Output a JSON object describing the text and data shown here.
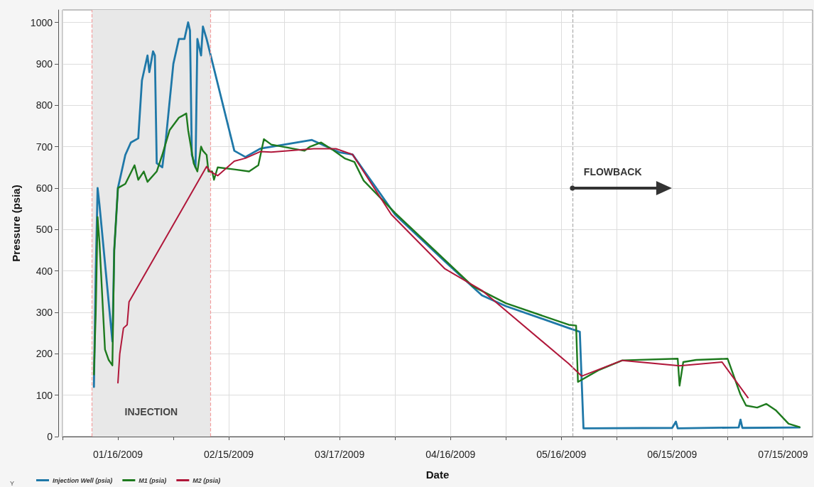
{
  "chart_data": {
    "type": "line",
    "xlabel": "Date",
    "ylabel": "Pressure (psia)",
    "legend_title": "Y",
    "legend": "bottom left",
    "grid": true,
    "marker": "none",
    "line_style": "solid",
    "xlim": [
      "2009-01-01",
      "2009-07-23"
    ],
    "xticks": [
      {
        "value": "2009-01-01",
        "label": null
      },
      {
        "value": "2009-01-16",
        "label": "01/16/2009"
      },
      {
        "value": "2009-01-31",
        "label": null
      },
      {
        "value": "2009-02-15",
        "label": "02/15/2009"
      },
      {
        "value": "2009-03-02",
        "label": null
      },
      {
        "value": "2009-03-17",
        "label": "03/17/2009"
      },
      {
        "value": "2009-04-01",
        "label": null
      },
      {
        "value": "2009-04-16",
        "label": "04/16/2009"
      },
      {
        "value": "2009-05-01",
        "label": null
      },
      {
        "value": "2009-05-16",
        "label": "05/16/2009"
      },
      {
        "value": "2009-05-31",
        "label": null
      },
      {
        "value": "2009-06-15",
        "label": "06/15/2009"
      },
      {
        "value": "2009-06-30",
        "label": null
      },
      {
        "value": "2009-07-15",
        "label": "07/15/2009"
      }
    ],
    "ylim": [
      0,
      1030
    ],
    "yticks": [
      0,
      100,
      200,
      300,
      400,
      500,
      600,
      700,
      800,
      900,
      1000
    ],
    "bands": [
      {
        "axis": "x",
        "from": "2009-01-09",
        "to": "2009-02-10",
        "label": "INJECTION",
        "color": "#e8e8e8"
      }
    ],
    "ref_lines": [
      {
        "axis": "x",
        "value": "2009-01-09",
        "label": null,
        "color": "#f4a0a0",
        "line_style": "dashed"
      },
      {
        "axis": "x",
        "value": "2009-02-10",
        "label": null,
        "color": "#f4a0a0",
        "line_style": "dashed"
      },
      {
        "axis": "x",
        "value": "2009-05-19",
        "label": null,
        "color": "#aaaaaa",
        "line_style": "dashed"
      }
    ],
    "annotations": [
      {
        "text": "FLOWBACK",
        "x": "2009-05-19",
        "y": 600
      }
    ],
    "series": [
      {
        "name": "Injection Well (psia)",
        "color": "#1f78a8",
        "x": [
          "2009-01-09T12:00",
          "2009-01-10",
          "2009-01-10T12:00",
          "2009-01-11",
          "2009-01-14T12:00",
          "2009-01-15",
          "2009-01-16",
          "2009-01-18",
          "2009-01-19T12:00",
          "2009-01-21T12:00",
          "2009-01-22T12:00",
          "2009-01-24",
          "2009-01-24T12:00",
          "2009-01-25T12:00",
          "2009-01-26",
          "2009-01-26T12:00",
          "2009-01-28",
          "2009-01-29",
          "2009-01-31",
          "2009-02-01T12:00",
          "2009-02-03",
          "2009-02-04",
          "2009-02-04T12:00",
          "2009-02-05",
          "2009-02-06",
          "2009-02-06T12:00",
          "2009-02-07T12:00",
          "2009-02-08",
          "2009-02-09",
          "2009-02-16T12:00",
          "2009-02-19T12:00",
          "2009-02-23T12:00",
          "2009-03-09T12:00",
          "2009-03-17",
          "2009-03-20T12:00",
          "2009-04-01",
          "2009-04-14T12:00",
          "2009-04-24T12:00",
          "2009-05-01",
          "2009-05-18",
          "2009-05-21",
          "2009-05-22",
          "2009-06-15",
          "2009-06-16",
          "2009-06-16T12:00",
          "2009-07-03",
          "2009-07-03T12:00",
          "2009-07-04",
          "2009-07-19T12:00"
        ],
        "values": [
          120,
          400,
          600,
          560,
          230,
          450,
          600,
          680,
          710,
          720,
          860,
          920,
          880,
          930,
          920,
          660,
          650,
          720,
          900,
          960,
          960,
          1000,
          980,
          680,
          650,
          960,
          920,
          990,
          960,
          690,
          675,
          695,
          716,
          686,
          681,
          536,
          423,
          341,
          315,
          262,
          253,
          20,
          21,
          36,
          20,
          22,
          41,
          21,
          22
        ]
      },
      {
        "name": "M1 (psia)",
        "color": "#1e7a1e",
        "x": [
          "2009-01-09T12:00",
          "2009-01-10",
          "2009-01-10T12:00",
          "2009-01-11",
          "2009-01-12T12:00",
          "2009-01-13T12:00",
          "2009-01-14T12:00",
          "2009-01-15",
          "2009-01-16",
          "2009-01-18",
          "2009-01-20T12:00",
          "2009-01-21T12:00",
          "2009-01-23",
          "2009-01-24",
          "2009-01-26T12:00",
          "2009-01-28",
          "2009-01-30",
          "2009-02-01T12:00",
          "2009-02-03T12:00",
          "2009-02-04",
          "2009-02-05T12:00",
          "2009-02-06T12:00",
          "2009-02-07T12:00",
          "2009-02-08",
          "2009-02-09",
          "2009-02-09T12:00",
          "2009-02-10T12:00",
          "2009-02-11",
          "2009-02-12",
          "2009-02-16T12:00",
          "2009-02-20T12:00",
          "2009-02-23",
          "2009-02-24T12:00",
          "2009-02-26T12:00",
          "2009-03-07T12:00",
          "2009-03-09",
          "2009-03-12",
          "2009-03-15",
          "2009-03-18T12:00",
          "2009-03-21",
          "2009-03-23T12:00",
          "2009-04-01",
          "2009-04-22",
          "2009-05-01",
          "2009-05-18",
          "2009-05-20",
          "2009-05-20T12:00",
          "2009-05-26",
          "2009-06-01T12:00",
          "2009-06-16T12:00",
          "2009-06-17",
          "2009-06-18",
          "2009-06-21T12:00",
          "2009-06-30",
          "2009-07-03T12:00",
          "2009-07-05",
          "2009-07-08",
          "2009-07-10T12:00",
          "2009-07-13",
          "2009-07-16T12:00",
          "2009-07-19T12:00"
        ],
        "values": [
          150,
          300,
          530,
          470,
          210,
          185,
          172,
          450,
          600,
          610,
          655,
          620,
          640,
          615,
          640,
          680,
          740,
          770,
          780,
          740,
          660,
          640,
          700,
          690,
          680,
          640,
          640,
          620,
          650,
          645,
          640,
          655,
          718,
          705,
          690,
          700,
          710,
          693,
          671,
          663,
          618,
          540,
          363,
          322,
          270,
          268,
          132,
          160,
          184,
          188,
          123,
          180,
          185,
          188,
          101,
          75,
          70,
          79,
          64,
          31,
          23
        ]
      },
      {
        "name": "M2 (psia)",
        "color": "#b0173a",
        "x": [
          "2009-01-16",
          "2009-01-16T12:00",
          "2009-01-17T12:00",
          "2009-01-18T12:00",
          "2009-01-19",
          "2009-02-09",
          "2009-02-10",
          "2009-02-12",
          "2009-02-16T12:00",
          "2009-02-19T12:00",
          "2009-02-23T12:00",
          "2009-02-26T12:00",
          "2009-03-10",
          "2009-03-16",
          "2009-03-20T12:00",
          "2009-03-31",
          "2009-04-14T12:00",
          "2009-04-24T12:00",
          "2009-05-18",
          "2009-05-21T12:00",
          "2009-06-01T12:00",
          "2009-06-17",
          "2009-06-28T12:00",
          "2009-07-05T12:00"
        ],
        "values": [
          130,
          200,
          262,
          270,
          325,
          652,
          640,
          630,
          665,
          672,
          688,
          687,
          695,
          695,
          681,
          536,
          405,
          353,
          176,
          146,
          184,
          171,
          180,
          94
        ]
      }
    ]
  }
}
